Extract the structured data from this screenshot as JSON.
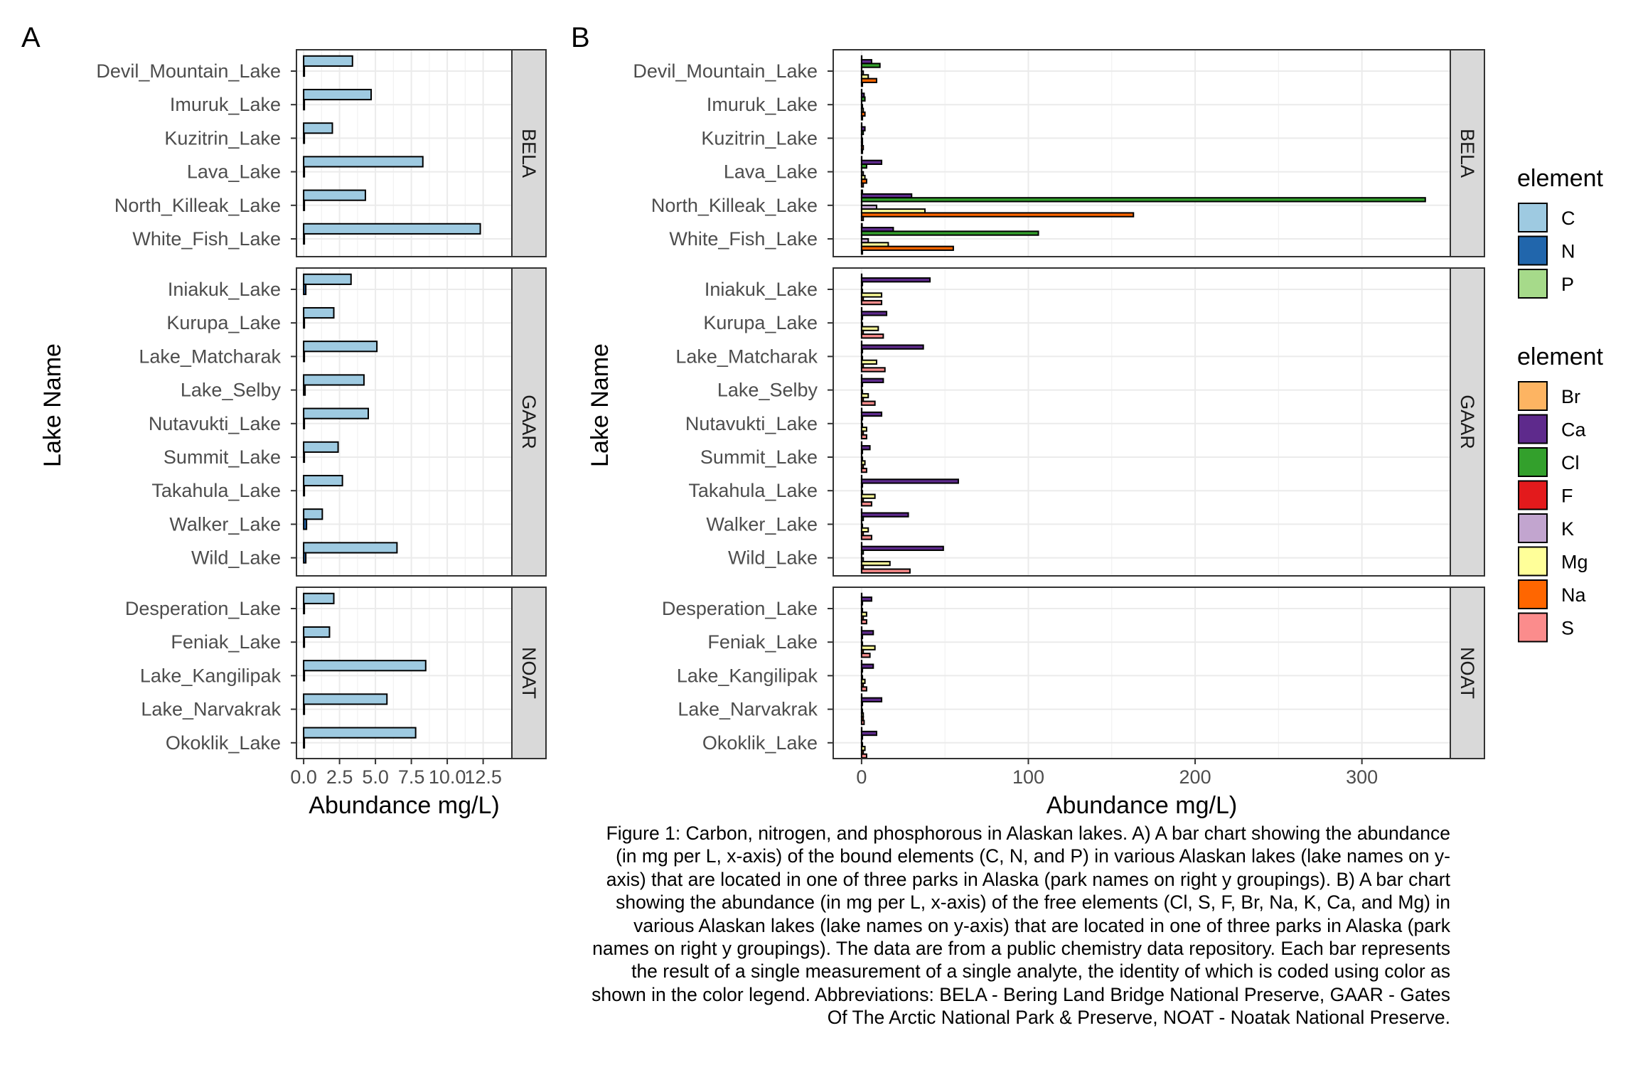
{
  "panel_labels": {
    "a": "A",
    "b": "B"
  },
  "legends": [
    {
      "title": "element",
      "items": [
        {
          "label": "C",
          "color": "#9ECAE1"
        },
        {
          "label": "N",
          "color": "#2166AC"
        },
        {
          "label": "P",
          "color": "#A6DA8A"
        }
      ]
    },
    {
      "title": "element",
      "items": [
        {
          "label": "Br",
          "color": "#FDB462"
        },
        {
          "label": "Ca",
          "color": "#5E2A8C"
        },
        {
          "label": "Cl",
          "color": "#33A02C"
        },
        {
          "label": "F",
          "color": "#E31A1C"
        },
        {
          "label": "K",
          "color": "#C2A5CF"
        },
        {
          "label": "Mg",
          "color": "#FFFF99"
        },
        {
          "label": "Na",
          "color": "#FF6600"
        },
        {
          "label": "S",
          "color": "#FB8C8C"
        }
      ]
    }
  ],
  "caption": "Figure 1: Carbon, nitrogen, and phosphorous in Alaskan lakes. A) A bar chart showing the abundance (in mg per L, x-axis) of the bound elements (C, N, and P) in various Alaskan lakes (lake names on y-axis) that are located in one of three parks in Alaska (park names on right y groupings). B) A bar chart showing the abundance (in mg per L, x-axis) of the free elements (Cl, S, F, Br, Na, K, Ca, and Mg) in various Alaskan lakes (lake names on y-axis) that are located in one of three parks in Alaska (park names on right y groupings). The data are from a public chemistry data repository. Each bar represents the result of a single measurement of a single analyte, the identity of which is coded using color as shown in the color legend. Abbreviations: BELA - Bering Land Bridge National Preserve, GAAR - Gates Of The Arctic National Park & Preserve, NOAT - Noatak National Preserve.",
  "chart_data": [
    {
      "type": "bar",
      "orientation": "horizontal",
      "panel": "A",
      "xlabel": "Abundance mg/L)",
      "ylabel": "Lake Name",
      "xlim": [
        -0.5,
        14.5
      ],
      "xticks": [
        0,
        2.5,
        5,
        7.5,
        10,
        12.5
      ],
      "xtick_labels": [
        "0.0",
        "2.5",
        "5.0",
        "7.5",
        "10.0",
        "12.5"
      ],
      "grid": true,
      "facet_labels": [
        "BELA",
        "GAAR",
        "NOAT"
      ],
      "elements": [
        "C",
        "N",
        "P"
      ],
      "facets": [
        {
          "name": "BELA",
          "lakes": [
            {
              "lake": "White_Fish_Lake",
              "values": {
                "C": 12.3,
                "N": 0.05,
                "P": 0.0
              }
            },
            {
              "lake": "North_Killeak_Lake",
              "values": {
                "C": 4.3,
                "N": 0.05,
                "P": 0.0
              }
            },
            {
              "lake": "Lava_Lake",
              "values": {
                "C": 8.3,
                "N": 0.05,
                "P": 0.0
              }
            },
            {
              "lake": "Kuzitrin_Lake",
              "values": {
                "C": 2.0,
                "N": 0.05,
                "P": 0.0
              }
            },
            {
              "lake": "Imuruk_Lake",
              "values": {
                "C": 4.7,
                "N": 0.05,
                "P": 0.0
              }
            },
            {
              "lake": "Devil_Mountain_Lake",
              "values": {
                "C": 3.4,
                "N": 0.05,
                "P": 0.0
              }
            }
          ]
        },
        {
          "name": "GAAR",
          "lakes": [
            {
              "lake": "Wild_Lake",
              "values": {
                "C": 6.5,
                "N": 0.15,
                "P": 0.0
              }
            },
            {
              "lake": "Walker_Lake",
              "values": {
                "C": 1.3,
                "N": 0.2,
                "P": 0.0
              }
            },
            {
              "lake": "Takahula_Lake",
              "values": {
                "C": 2.7,
                "N": 0.05,
                "P": 0.0
              }
            },
            {
              "lake": "Summit_Lake",
              "values": {
                "C": 2.4,
                "N": 0.05,
                "P": 0.0
              }
            },
            {
              "lake": "Nutavukti_Lake",
              "values": {
                "C": 4.5,
                "N": 0.05,
                "P": 0.0
              }
            },
            {
              "lake": "Lake_Selby",
              "values": {
                "C": 4.2,
                "N": 0.1,
                "P": 0.0
              }
            },
            {
              "lake": "Lake_Matcharak",
              "values": {
                "C": 5.1,
                "N": 0.05,
                "P": 0.0
              }
            },
            {
              "lake": "Kurupa_Lake",
              "values": {
                "C": 2.1,
                "N": 0.05,
                "P": 0.0
              }
            },
            {
              "lake": "Iniakuk_Lake",
              "values": {
                "C": 3.3,
                "N": 0.15,
                "P": 0.0
              }
            }
          ]
        },
        {
          "name": "NOAT",
          "lakes": [
            {
              "lake": "Okoklik_Lake",
              "values": {
                "C": 7.8,
                "N": 0.05,
                "P": 0.0
              }
            },
            {
              "lake": "Lake_Narvakrak",
              "values": {
                "C": 5.8,
                "N": 0.05,
                "P": 0.0
              }
            },
            {
              "lake": "Lake_Kangilipak",
              "values": {
                "C": 8.5,
                "N": 0.05,
                "P": 0.0
              }
            },
            {
              "lake": "Feniak_Lake",
              "values": {
                "C": 1.8,
                "N": 0.05,
                "P": 0.0
              }
            },
            {
              "lake": "Desperation_Lake",
              "values": {
                "C": 2.1,
                "N": 0.05,
                "P": 0.0
              }
            }
          ]
        }
      ]
    },
    {
      "type": "bar",
      "orientation": "horizontal",
      "panel": "B",
      "xlabel": "Abundance mg/L)",
      "ylabel": "Lake Name",
      "xlim": [
        -17,
        353
      ],
      "xticks": [
        0,
        100,
        200,
        300
      ],
      "xtick_labels": [
        "0",
        "100",
        "200",
        "300"
      ],
      "grid": true,
      "facet_labels": [
        "BELA",
        "GAAR",
        "NOAT"
      ],
      "elements": [
        "Br",
        "Ca",
        "Cl",
        "F",
        "K",
        "Mg",
        "Na",
        "S"
      ],
      "facets": [
        {
          "name": "BELA",
          "lakes": [
            {
              "lake": "White_Fish_Lake",
              "values": {
                "Na": 55,
                "Mg": 16,
                "K": 4,
                "F": 0.1,
                "Cl": 106,
                "Ca": 19,
                "Br": 0.3,
                "S": 0.5
              }
            },
            {
              "lake": "North_Killeak_Lake",
              "values": {
                "Na": 163,
                "Mg": 38,
                "K": 9,
                "F": 0.1,
                "Cl": 338,
                "Ca": 30,
                "Br": 0.5,
                "S": 1
              }
            },
            {
              "lake": "Lava_Lake",
              "values": {
                "Na": 3,
                "Mg": 2,
                "K": 1,
                "F": 0.05,
                "Cl": 3,
                "Ca": 12,
                "Br": 0.1,
                "S": 1
              }
            },
            {
              "lake": "Kuzitrin_Lake",
              "values": {
                "Na": 1,
                "Mg": 0.5,
                "K": 0.5,
                "F": 0.05,
                "Cl": 1,
                "Ca": 2,
                "Br": 0.1,
                "S": 0.5
              }
            },
            {
              "lake": "Imuruk_Lake",
              "values": {
                "Na": 2,
                "Mg": 1,
                "K": 0.5,
                "F": 0.05,
                "Cl": 2,
                "Ca": 1.5,
                "Br": 0.1,
                "S": 0.5
              }
            },
            {
              "lake": "Devil_Mountain_Lake",
              "values": {
                "Na": 9,
                "Mg": 4,
                "K": 1,
                "F": 0.05,
                "Cl": 11,
                "Ca": 6,
                "Br": 0.1,
                "S": 0.5
              }
            }
          ]
        },
        {
          "name": "GAAR",
          "lakes": [
            {
              "lake": "Wild_Lake",
              "values": {
                "Na": 1,
                "Mg": 17,
                "K": 1,
                "F": 0.05,
                "Cl": 1,
                "Ca": 49,
                "Br": 0.1,
                "S": 29
              }
            },
            {
              "lake": "Walker_Lake",
              "values": {
                "Na": 1,
                "Mg": 4,
                "K": 0.5,
                "F": 0.05,
                "Cl": 1,
                "Ca": 28,
                "Br": 0.1,
                "S": 6
              }
            },
            {
              "lake": "Takahula_Lake",
              "values": {
                "Na": 1,
                "Mg": 8,
                "K": 0.5,
                "F": 0.05,
                "Cl": 0.5,
                "Ca": 58,
                "Br": 0.1,
                "S": 6
              }
            },
            {
              "lake": "Summit_Lake",
              "values": {
                "Na": 1,
                "Mg": 2,
                "K": 0.5,
                "F": 0.05,
                "Cl": 0.5,
                "Ca": 5,
                "Br": 0.1,
                "S": 3
              }
            },
            {
              "lake": "Nutavukti_Lake",
              "values": {
                "Na": 1,
                "Mg": 3,
                "K": 0.5,
                "F": 0.05,
                "Cl": 0.5,
                "Ca": 12,
                "Br": 0.1,
                "S": 3
              }
            },
            {
              "lake": "Lake_Selby",
              "values": {
                "Na": 1,
                "Mg": 4,
                "K": 0.5,
                "F": 0.05,
                "Cl": 0.5,
                "Ca": 13,
                "Br": 0.1,
                "S": 8
              }
            },
            {
              "lake": "Lake_Matcharak",
              "values": {
                "Na": 1,
                "Mg": 9,
                "K": 0.5,
                "F": 0.05,
                "Cl": 0.5,
                "Ca": 37,
                "Br": 0.1,
                "S": 14
              }
            },
            {
              "lake": "Kurupa_Lake",
              "values": {
                "Na": 1,
                "Mg": 10,
                "K": 0.5,
                "F": 0.05,
                "Cl": 0.5,
                "Ca": 15,
                "Br": 0.1,
                "S": 13
              }
            },
            {
              "lake": "Iniakuk_Lake",
              "values": {
                "Na": 1,
                "Mg": 12,
                "K": 0.5,
                "F": 0.05,
                "Cl": 0.5,
                "Ca": 41,
                "Br": 0.1,
                "S": 12
              }
            }
          ]
        },
        {
          "name": "NOAT",
          "lakes": [
            {
              "lake": "Okoklik_Lake",
              "values": {
                "Na": 1,
                "Mg": 2,
                "K": 0.5,
                "F": 0.05,
                "Cl": 0.5,
                "Ca": 9,
                "Br": 0.1,
                "S": 3
              }
            },
            {
              "lake": "Lake_Narvakrak",
              "values": {
                "Na": 1,
                "Mg": 1,
                "K": 0.5,
                "F": 0.05,
                "Cl": 0.5,
                "Ca": 12,
                "Br": 0.1,
                "S": 1.5
              }
            },
            {
              "lake": "Lake_Kangilipak",
              "values": {
                "Na": 1,
                "Mg": 2,
                "K": 0.5,
                "F": 0.05,
                "Cl": 0.5,
                "Ca": 7,
                "Br": 0.1,
                "S": 3
              }
            },
            {
              "lake": "Feniak_Lake",
              "values": {
                "Na": 1,
                "Mg": 8,
                "K": 0.5,
                "F": 0.05,
                "Cl": 0.5,
                "Ca": 7,
                "Br": 0.1,
                "S": 5
              }
            },
            {
              "lake": "Desperation_Lake",
              "values": {
                "Na": 1,
                "Mg": 3,
                "K": 0.5,
                "F": 0.05,
                "Cl": 0.5,
                "Ca": 6,
                "Br": 0.1,
                "S": 3
              }
            }
          ]
        }
      ]
    }
  ]
}
